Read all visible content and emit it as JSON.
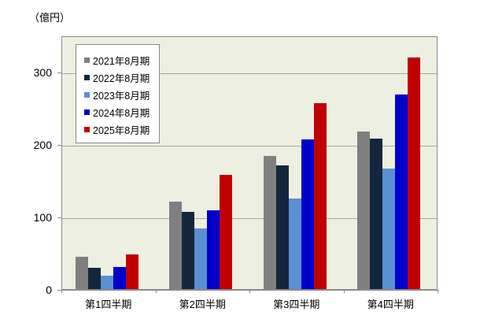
{
  "chart_data": {
    "type": "bar",
    "title": "",
    "unit_label": "（億円）",
    "categories": [
      "第1四半期",
      "第2四半期",
      "第3四半期",
      "第4四半期"
    ],
    "series": [
      {
        "name": "2021年8月期",
        "color": "#7f7f7f",
        "values": [
          45,
          121,
          184,
          217
        ]
      },
      {
        "name": "2022年8月期",
        "color": "#14263e",
        "values": [
          29,
          107,
          171,
          208
        ]
      },
      {
        "name": "2023年8月期",
        "color": "#5b8fd3",
        "values": [
          18,
          84,
          125,
          166
        ]
      },
      {
        "name": "2024年8月期",
        "color": "#0000cd",
        "values": [
          30,
          109,
          207,
          268
        ]
      },
      {
        "name": "2025年8月期",
        "color": "#c00000",
        "values": [
          48,
          158,
          257,
          320
        ]
      }
    ],
    "ylim": [
      0,
      350
    ],
    "yticks": [
      0,
      100,
      200,
      300
    ],
    "grid": true,
    "legend_position": "top-left-inside",
    "plot_bg_color": "#edf0e0",
    "grid_color": "#a4a7a0",
    "axis_color": "#8a8a8a"
  }
}
